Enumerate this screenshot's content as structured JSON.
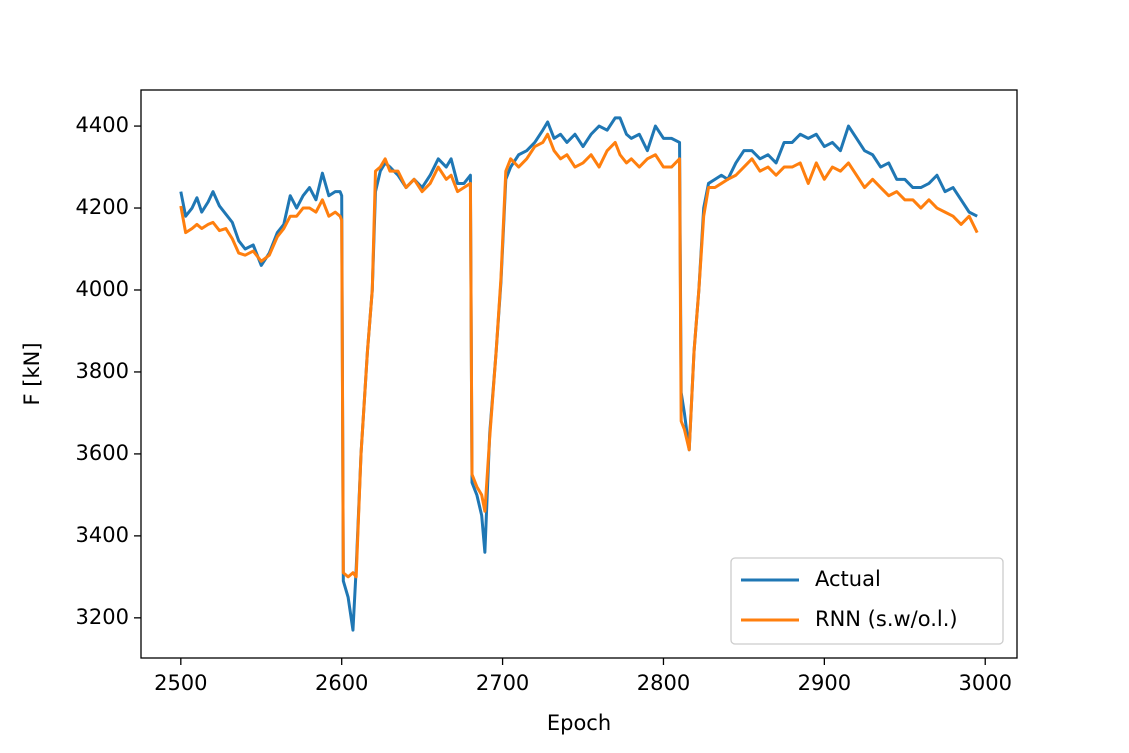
{
  "chart_data": {
    "type": "line",
    "xlabel": "Epoch",
    "ylabel": "F [kN]",
    "x": [
      2500,
      2503,
      2507,
      2510,
      2513,
      2517,
      2520,
      2524,
      2528,
      2532,
      2536,
      2540,
      2545,
      2550,
      2555,
      2560,
      2564,
      2568,
      2572,
      2576,
      2580,
      2584,
      2588,
      2592,
      2596,
      2599,
      2600,
      2601,
      2604,
      2607,
      2609,
      2612,
      2616,
      2619,
      2621,
      2624,
      2627,
      2630,
      2635,
      2640,
      2645,
      2650,
      2655,
      2660,
      2665,
      2668,
      2672,
      2676,
      2680,
      2681,
      2684,
      2687,
      2689,
      2692,
      2696,
      2699,
      2702,
      2705,
      2710,
      2715,
      2720,
      2725,
      2728,
      2732,
      2736,
      2740,
      2745,
      2750,
      2755,
      2760,
      2765,
      2770,
      2773,
      2777,
      2780,
      2785,
      2790,
      2795,
      2800,
      2805,
      2810,
      2811,
      2813,
      2816,
      2819,
      2822,
      2825,
      2828,
      2832,
      2836,
      2840,
      2845,
      2850,
      2855,
      2860,
      2865,
      2870,
      2875,
      2880,
      2885,
      2890,
      2895,
      2900,
      2905,
      2910,
      2915,
      2920,
      2925,
      2930,
      2935,
      2940,
      2945,
      2950,
      2955,
      2960,
      2965,
      2970,
      2975,
      2980,
      2985,
      2990,
      2995
    ],
    "series": [
      {
        "name": "Actual",
        "color": "#1f77b4",
        "values": [
          4240,
          4180,
          4200,
          4225,
          4190,
          4215,
          4240,
          4205,
          4185,
          4165,
          4120,
          4100,
          4110,
          4060,
          4090,
          4140,
          4160,
          4230,
          4200,
          4230,
          4250,
          4220,
          4285,
          4230,
          4240,
          4240,
          4230,
          3290,
          3250,
          3170,
          3320,
          3600,
          3850,
          4000,
          4240,
          4290,
          4310,
          4300,
          4280,
          4250,
          4270,
          4250,
          4280,
          4320,
          4300,
          4320,
          4260,
          4260,
          4280,
          3530,
          3500,
          3450,
          3360,
          3650,
          3850,
          4020,
          4270,
          4300,
          4330,
          4340,
          4360,
          4390,
          4410,
          4370,
          4380,
          4360,
          4380,
          4350,
          4380,
          4400,
          4390,
          4420,
          4420,
          4380,
          4370,
          4380,
          4340,
          4400,
          4370,
          4370,
          4360,
          3750,
          3700,
          3610,
          3850,
          4000,
          4200,
          4260,
          4270,
          4280,
          4270,
          4310,
          4340,
          4340,
          4320,
          4330,
          4310,
          4360,
          4360,
          4380,
          4370,
          4380,
          4350,
          4360,
          4340,
          4400,
          4370,
          4340,
          4330,
          4300,
          4310,
          4270,
          4270,
          4250,
          4250,
          4260,
          4280,
          4240,
          4250,
          4220,
          4190,
          4180
        ]
      },
      {
        "name": "RNN (s.w/o.l.)",
        "color": "#ff7f0e",
        "values": [
          4205,
          4140,
          4150,
          4160,
          4150,
          4160,
          4165,
          4145,
          4150,
          4125,
          4090,
          4085,
          4095,
          4070,
          4085,
          4130,
          4150,
          4180,
          4180,
          4200,
          4200,
          4190,
          4220,
          4180,
          4190,
          4180,
          4170,
          3310,
          3300,
          3310,
          3300,
          3600,
          3850,
          4000,
          4290,
          4300,
          4320,
          4290,
          4290,
          4250,
          4270,
          4240,
          4260,
          4300,
          4270,
          4280,
          4240,
          4250,
          4260,
          3550,
          3520,
          3500,
          3460,
          3640,
          3850,
          4030,
          4290,
          4320,
          4300,
          4320,
          4350,
          4360,
          4380,
          4340,
          4320,
          4330,
          4300,
          4310,
          4330,
          4300,
          4340,
          4360,
          4330,
          4310,
          4320,
          4300,
          4320,
          4330,
          4300,
          4300,
          4320,
          3680,
          3660,
          3610,
          3850,
          4000,
          4180,
          4250,
          4250,
          4260,
          4270,
          4280,
          4300,
          4320,
          4290,
          4300,
          4280,
          4300,
          4300,
          4310,
          4260,
          4310,
          4270,
          4300,
          4290,
          4310,
          4280,
          4250,
          4270,
          4250,
          4230,
          4240,
          4220,
          4220,
          4200,
          4220,
          4200,
          4190,
          4180,
          4160,
          4180,
          4140
        ]
      }
    ],
    "xlim": [
      2475.25,
      3019.75
    ],
    "ylim": [
      3102,
      4488
    ],
    "xticks": [
      2500,
      2600,
      2700,
      2800,
      2900,
      3000
    ],
    "yticks": [
      3200,
      3400,
      3600,
      3800,
      4000,
      4200,
      4400
    ],
    "legend": "lower right"
  }
}
